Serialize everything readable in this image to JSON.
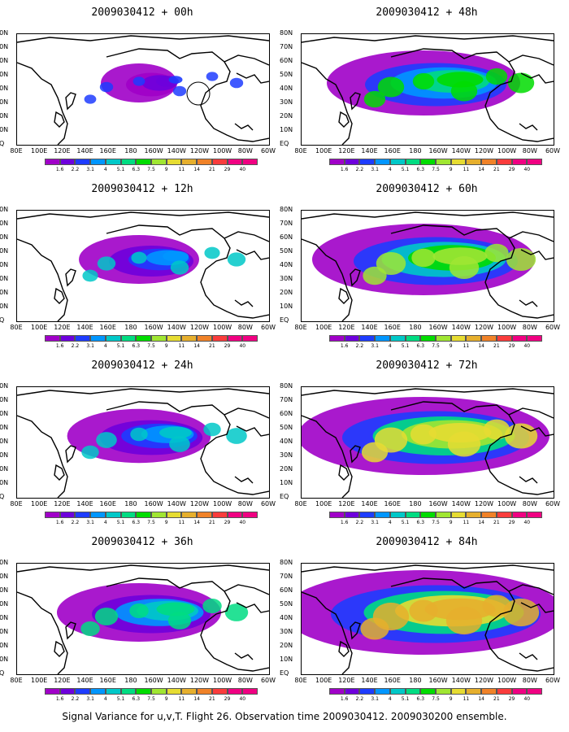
{
  "footer": "Signal Variance for u,v,T. Flight 26. Observation time 2009030412. 2009030200 ensemble.",
  "chart_data": {
    "type": "heatmap",
    "x_ticks": [
      "80E",
      "100E",
      "120E",
      "140E",
      "160E",
      "180",
      "160W",
      "140W",
      "120W",
      "100W",
      "80W",
      "60W"
    ],
    "y_ticks": [
      "EQ",
      "10N",
      "20N",
      "30N",
      "40N",
      "50N",
      "60N",
      "70N",
      "80N"
    ],
    "colorbar": {
      "levels": [
        "1.6",
        "2.2",
        "3.1",
        "4",
        "5.1",
        "6.3",
        "7.5",
        "9",
        "11",
        "14",
        "21",
        "29",
        "40"
      ],
      "colors": [
        "#a000c8",
        "#6e00dc",
        "#1e3cff",
        "#0096ff",
        "#00c8c8",
        "#00dc82",
        "#00dc00",
        "#a0e632",
        "#e6dc32",
        "#e6af2d",
        "#f08228",
        "#fa3c3c",
        "#f00082"
      ]
    },
    "panels": [
      {
        "title": "2009030412 + 00h",
        "intensity": 0.15
      },
      {
        "title": "2009030412 + 48h",
        "intensity": 0.55
      },
      {
        "title": "2009030412 + 12h",
        "intensity": 0.3
      },
      {
        "title": "2009030412 + 60h",
        "intensity": 0.65
      },
      {
        "title": "2009030412 + 24h",
        "intensity": 0.38
      },
      {
        "title": "2009030412 + 72h",
        "intensity": 0.75
      },
      {
        "title": "2009030412 + 36h",
        "intensity": 0.45
      },
      {
        "title": "2009030412 + 84h",
        "intensity": 0.85
      }
    ]
  }
}
